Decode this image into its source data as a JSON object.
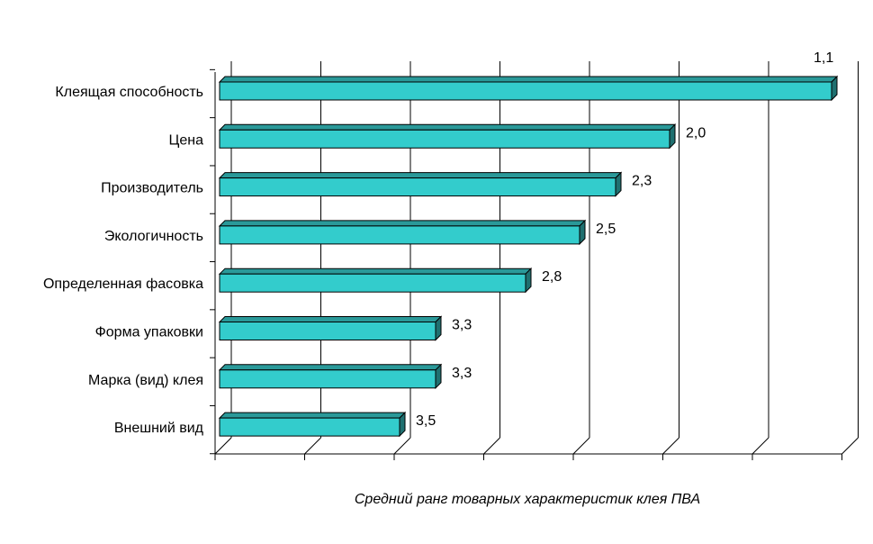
{
  "chart_data": {
    "type": "bar",
    "orientation": "horizontal",
    "style": "3d",
    "categories": [
      "Клеящая способность",
      "Цена",
      "Производитель",
      "Экологичность",
      "Определенная фасовка",
      "Форма упаковки",
      "Марка (вид) клея",
      "Внешний вид"
    ],
    "values": [
      1.1,
      2.0,
      2.3,
      2.5,
      2.8,
      3.3,
      3.3,
      3.5
    ],
    "data_labels": [
      "1,1",
      "2,0",
      "2,3",
      "2,5",
      "2,8",
      "3,3",
      "3,3",
      "3,5"
    ],
    "axis_reversed": true,
    "xlim": [
      4.5,
      1.0
    ],
    "xlabel": "Средний ранг товарных характеристик клея ПВА",
    "ylabel": "",
    "title": "",
    "grid": "vertical",
    "legend": "none",
    "colors": {
      "bar_front": "#33cccc",
      "bar_top": "#2a9999",
      "bar_side": "#1f7070",
      "bar_outline": "#000000",
      "grid": "#000000",
      "background": "#ffffff"
    }
  }
}
